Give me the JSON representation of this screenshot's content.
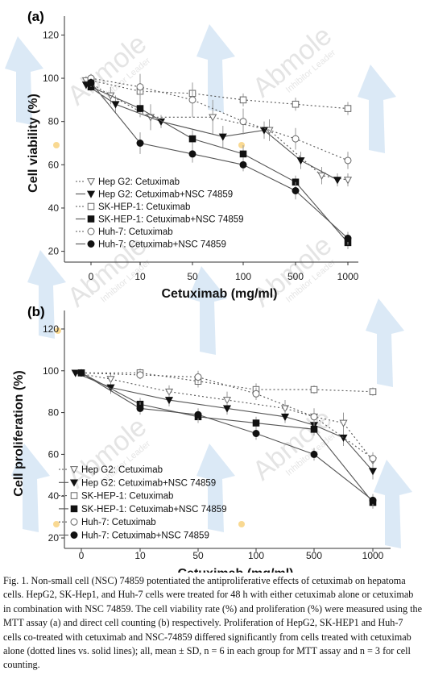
{
  "caption": "Fig. 1. Non-small cell (NSC) 74859 potentiated the antiproliferative effects of cetuximab on hepatoma cells. HepG2, SK-Hep1, and Huh-7 cells were treated for 48 h with either cetuximab alone or cetuximab in combination with NSC 74859. The cell viability rate (%) and proliferation (%) were measured using the MTT assay (a) and direct cell counting (b) respectively. Proliferation of HepG2, SK-HEP1 and Huh-7 cells co-treated with cetuximab and NSC-74859 differed significantly from cells treated with cetuximab alone (dotted lines vs. solid lines); all, mean ± SD, n = 6 in each group for MTT assay and n = 3 for cell counting.",
  "watermark": {
    "brand": "Abmole",
    "tagline": "Inhibitor Leader",
    "colors": {
      "text": "#cfcfcf",
      "arrow": "#5b9bd5",
      "dot": "#f5c04a"
    }
  },
  "chart_data": [
    {
      "type": "line",
      "panel": "(a)",
      "xlabel": "Cetuximab (mg/ml)",
      "ylabel": "Cell viability (%)",
      "categories": [
        "0",
        "10",
        "50",
        "100",
        "500",
        "1000"
      ],
      "ylim": [
        15,
        125
      ],
      "yticks": [
        20,
        40,
        60,
        80,
        100,
        120
      ],
      "grid": false,
      "legend_position": "bottom-left",
      "series": [
        {
          "name": "Hep G2: Cetuximab",
          "marker": "triangle-down-open",
          "dash": "dotted",
          "color": "#555555",
          "x": [
            -0.1,
            0.4,
            1.2,
            2.4,
            3.5,
            4.5,
            5.0
          ],
          "y": [
            99,
            92,
            82,
            82,
            76,
            55,
            53
          ],
          "err": [
            2,
            4,
            6,
            8,
            5,
            4,
            3
          ]
        },
        {
          "name": "Hep G2: Cetuximab+NSC 74859",
          "marker": "triangle-down-filled",
          "dash": "solid",
          "color": "#555555",
          "x": [
            -0.1,
            0.5,
            1.4,
            2.6,
            3.4,
            4.1,
            4.8
          ],
          "y": [
            97,
            88,
            80,
            73,
            76,
            62,
            53
          ],
          "err": [
            2,
            4,
            3,
            5,
            4,
            4,
            3
          ]
        },
        {
          "name": "SK-HEP-1: Cetuximab",
          "marker": "square-open",
          "dash": "dotted",
          "color": "#555555",
          "x": [
            0.0,
            1.0,
            2.0,
            3.0,
            4.0,
            5.0
          ],
          "y": [
            99,
            94,
            93,
            90,
            88,
            86
          ],
          "err": [
            2,
            3,
            4,
            3,
            3,
            3
          ]
        },
        {
          "name": "SK-HEP-1: Cetuximab+NSC 74859",
          "marker": "square-filled",
          "dash": "solid",
          "color": "#555555",
          "x": [
            0.0,
            1.0,
            2.0,
            3.0,
            4.0,
            5.0
          ],
          "y": [
            96,
            86,
            72,
            65,
            52,
            24
          ],
          "err": [
            2,
            4,
            4,
            4,
            3,
            3
          ]
        },
        {
          "name": "Huh-7: Cetuximab",
          "marker": "circle-open",
          "dash": "dotted",
          "color": "#555555",
          "x": [
            0.0,
            1.0,
            2.0,
            3.0,
            4.0,
            5.0
          ],
          "y": [
            100,
            96,
            90,
            80,
            72,
            62
          ],
          "err": [
            2,
            6,
            8,
            6,
            5,
            4
          ]
        },
        {
          "name": "Huh-7: Cetuximab+NSC 74859",
          "marker": "circle-filled",
          "dash": "solid",
          "color": "#555555",
          "x": [
            0.0,
            1.0,
            2.0,
            3.0,
            4.0,
            5.0
          ],
          "y": [
            98,
            70,
            65,
            60,
            48,
            26
          ],
          "err": [
            2,
            5,
            4,
            3,
            4,
            3
          ]
        }
      ]
    },
    {
      "type": "line",
      "panel": "(b)",
      "xlabel": "Cetuximab (mg/ml)",
      "ylabel": "Cell proliferation (%)",
      "categories": [
        "0",
        "10",
        "50",
        "100",
        "500",
        "1000"
      ],
      "ylim": [
        15,
        125
      ],
      "yticks": [
        20,
        40,
        60,
        80,
        100,
        120
      ],
      "grid": false,
      "legend_position": "bottom-left",
      "series": [
        {
          "name": "Hep G2: Cetuximab",
          "marker": "triangle-down-open",
          "dash": "dotted",
          "color": "#555555",
          "x": [
            -0.1,
            0.5,
            1.5,
            2.5,
            3.5,
            4.0,
            4.5,
            5.0
          ],
          "y": [
            99,
            96,
            90,
            86,
            82,
            78,
            75,
            57
          ],
          "err": [
            1,
            3,
            3,
            4,
            4,
            4,
            5,
            3
          ]
        },
        {
          "name": "Hep G2: Cetuximab+NSC 74859",
          "marker": "triangle-down-filled",
          "dash": "solid",
          "color": "#555555",
          "x": [
            -0.1,
            0.5,
            1.5,
            2.5,
            3.5,
            4.0,
            4.5,
            5.0
          ],
          "y": [
            99,
            92,
            86,
            82,
            78,
            74,
            68,
            52
          ],
          "err": [
            1,
            3,
            3,
            3,
            3,
            4,
            4,
            4
          ]
        },
        {
          "name": "SK-HEP-1: Cetuximab",
          "marker": "square-open",
          "dash": "dotted",
          "color": "#555555",
          "x": [
            0.0,
            1.0,
            2.0,
            3.0,
            4.0,
            5.0
          ],
          "y": [
            99,
            99,
            95,
            91,
            91,
            90
          ],
          "err": [
            1,
            2,
            3,
            3,
            2,
            2
          ]
        },
        {
          "name": "SK-HEP-1: Cetuximab+NSC 74859",
          "marker": "square-filled",
          "dash": "solid",
          "color": "#555555",
          "x": [
            0.0,
            1.0,
            2.0,
            3.0,
            4.0,
            5.0
          ],
          "y": [
            99,
            84,
            78,
            75,
            72,
            37
          ],
          "err": [
            1,
            3,
            3,
            3,
            3,
            3
          ]
        },
        {
          "name": "Huh-7: Cetuximab",
          "marker": "circle-open",
          "dash": "dotted",
          "color": "#555555",
          "x": [
            0.0,
            1.0,
            2.0,
            3.0,
            4.0,
            5.0
          ],
          "y": [
            99,
            98,
            97,
            89,
            78,
            58
          ],
          "err": [
            1,
            2,
            3,
            3,
            4,
            3
          ]
        },
        {
          "name": "Huh-7: Cetuximab+NSC 74859",
          "marker": "circle-filled",
          "dash": "solid",
          "color": "#555555",
          "x": [
            0.0,
            1.0,
            2.0,
            3.0,
            4.0,
            5.0
          ],
          "y": [
            99,
            82,
            79,
            70,
            60,
            38
          ],
          "err": [
            1,
            3,
            3,
            3,
            3,
            3
          ]
        }
      ]
    }
  ]
}
